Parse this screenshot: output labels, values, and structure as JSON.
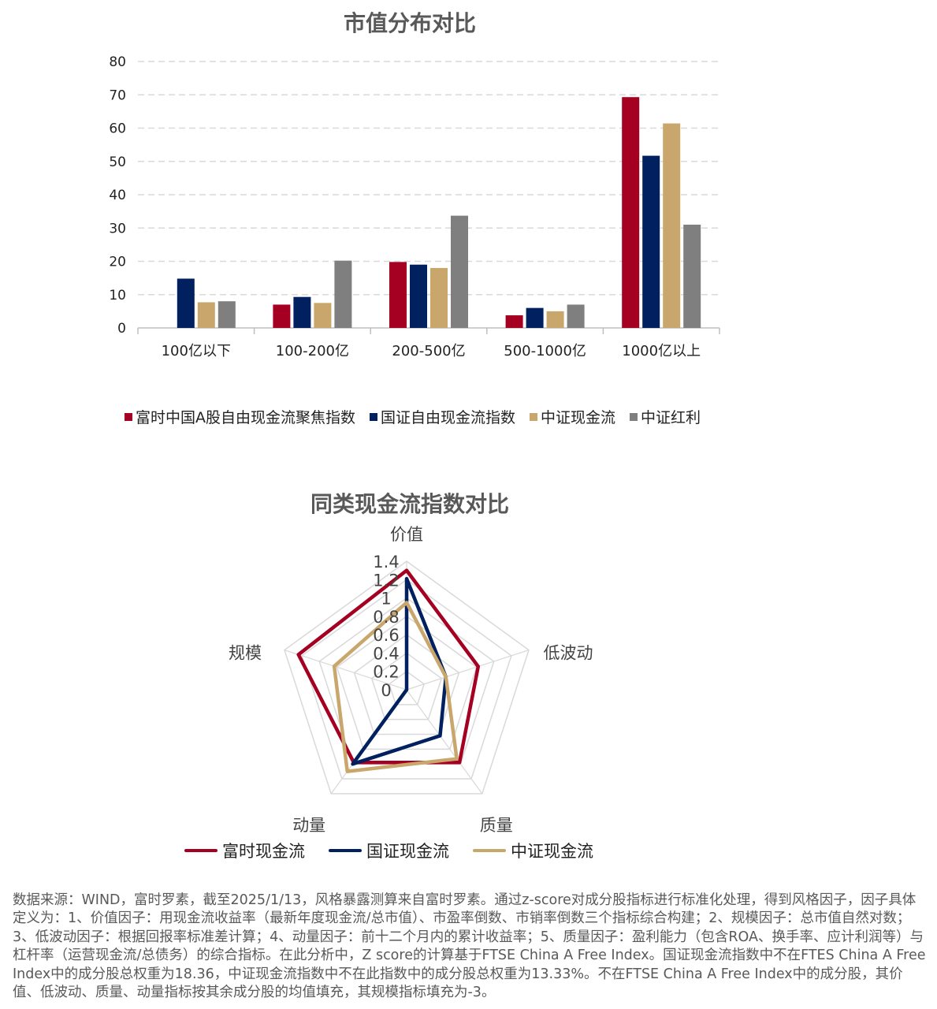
{
  "colors": {
    "ftse": "#A50021",
    "guozheng": "#002060",
    "zhongzheng": "#C9A66B",
    "hongli": "#7F7F7F",
    "grid": "#D9D9D9",
    "axis": "#BFBFBF"
  },
  "chart_data": [
    {
      "type": "bar",
      "title": "市值分布对比",
      "categories": [
        "100亿以下",
        "100-200亿",
        "200-500亿",
        "500-1000亿",
        "1000亿以上"
      ],
      "ylim": [
        0,
        80
      ],
      "yticks": [
        "0",
        "10",
        "20",
        "30",
        "40",
        "50",
        "60",
        "70",
        "80"
      ],
      "grid": true,
      "legend": "bottom",
      "series": [
        {
          "name": "富时中国A股自由现金流聚焦指数",
          "values": [
            0,
            7,
            19.8,
            3.8,
            69.3
          ]
        },
        {
          "name": "国证自由现金流指数",
          "values": [
            14.8,
            9.3,
            19,
            6,
            51.7
          ]
        },
        {
          "name": "中证现金流",
          "values": [
            7.7,
            7.5,
            18,
            5,
            61.4
          ]
        },
        {
          "name": "中证红利",
          "values": [
            8,
            20.2,
            33.7,
            7,
            31
          ]
        }
      ]
    },
    {
      "type": "radar",
      "title": "同类现金流指数对比",
      "axes": [
        "价值",
        "低波动",
        "质量",
        "动量",
        "规模"
      ],
      "rlim": [
        0,
        1.4
      ],
      "rticks": [
        "0",
        "0.2",
        "0.4",
        "0.6",
        "0.8",
        "1",
        "1.2",
        "1.4"
      ],
      "legend": "bottom",
      "series": [
        {
          "name": "富时现金流",
          "values": [
            1.3,
            0.82,
            0.98,
            0.98,
            1.24
          ]
        },
        {
          "name": "国证现金流",
          "values": [
            1.21,
            0.45,
            0.62,
            1.0,
            0.0
          ]
        },
        {
          "name": "中证现金流",
          "values": [
            0.95,
            0.45,
            0.93,
            1.1,
            0.83
          ]
        }
      ]
    }
  ],
  "footnote": "数据来源：WIND，富时罗素，截至2025/1/13，风格暴露测算来自富时罗素。通过z-score对成分股指标进行标准化处理，得到风格因子，因子具体定义为：1、价值因子：用现金流收益率（最新年度现金流/总市值）、市盈率倒数、市销率倒数三个指标综合构建；2、规模因子：总市值自然对数；3、低波动因子：根据回报率标准差计算；4、动量因子：前十二个月内的累计收益率；5、质量因子：盈利能力（包含ROA、换手率、应计利润等）与杠杆率（运营现金流/总债务）的综合指标。在此分析中，Z score的计算基于FTSE China A Free Index。国证现金流指数中不在FTES China A Free Index中的成分股总权重为18.36，中证现金流指数中不在此指数中的成分股总权重为13.33%。不在FTSE China A Free Index中的成分股，其价值、低波动、质量、动量指标按其余成分股的均值填充，其规模指标填充为-3。"
}
